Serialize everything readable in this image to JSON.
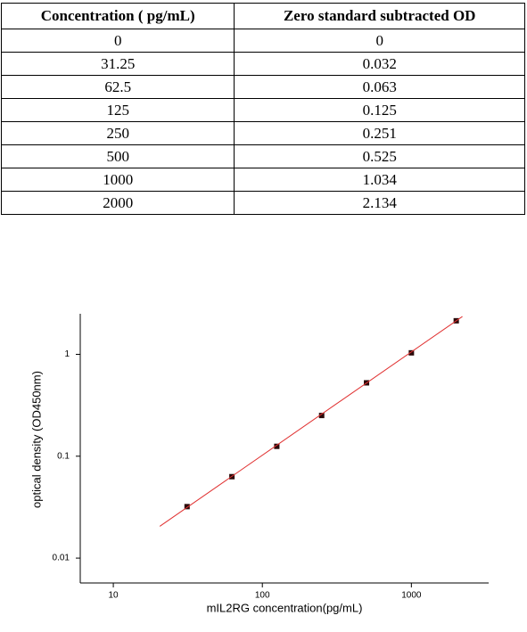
{
  "table": {
    "header": [
      "Concentration ( pg/mL)",
      "Zero standard subtracted OD"
    ],
    "rows": [
      [
        "0",
        "0"
      ],
      [
        "31.25",
        "0.032"
      ],
      [
        "62.5",
        "0.063"
      ],
      [
        "125",
        "0.125"
      ],
      [
        "250",
        "0.251"
      ],
      [
        "500",
        "0.525"
      ],
      [
        "1000",
        "1.034"
      ],
      [
        "2000",
        "2.134"
      ]
    ]
  },
  "chart_data": {
    "type": "scatter",
    "x_label": "mIL2RG  concentration(pg/mL)",
    "y_label": "optical density (OD450nm)",
    "x_log": true,
    "y_log": true,
    "xlim": [
      6,
      3300
    ],
    "ylim": [
      0.0057,
      2.5
    ],
    "xticks": [
      10,
      100,
      1000
    ],
    "yticks": [
      0.01,
      0.1,
      1
    ],
    "series": [
      {
        "color": "#2a0a0a",
        "x": [
          31.25,
          62.5,
          125,
          250,
          500,
          1000,
          2000
        ],
        "values": [
          0.032,
          0.063,
          0.125,
          0.251,
          0.525,
          1.034,
          2.134
        ]
      },
      {
        "color": "#e03030",
        "style": "line",
        "x": [
          20.5,
          2200
        ],
        "values": [
          0.0205,
          2.35
        ]
      }
    ]
  }
}
